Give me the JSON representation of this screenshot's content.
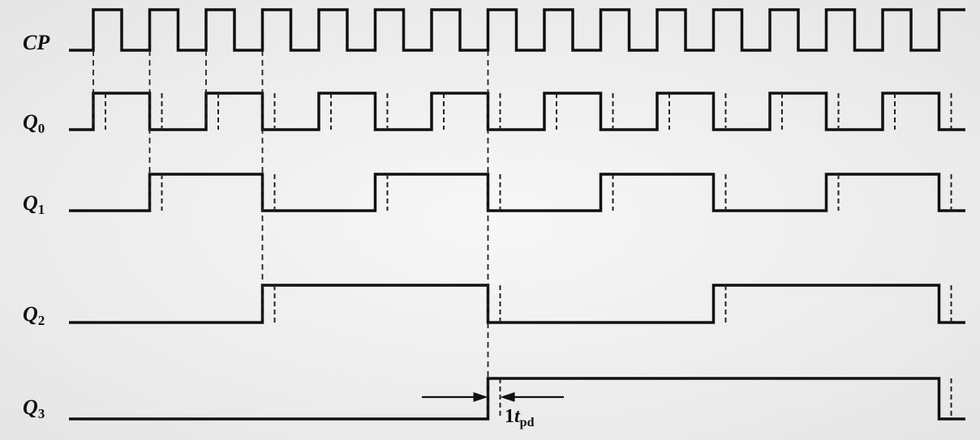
{
  "signals": [
    {
      "id": "CP",
      "name": "CP",
      "sub": ""
    },
    {
      "id": "Q0",
      "name": "Q",
      "sub": "0"
    },
    {
      "id": "Q1",
      "name": "Q",
      "sub": "1"
    },
    {
      "id": "Q2",
      "name": "Q",
      "sub": "2"
    },
    {
      "id": "Q3",
      "name": "Q",
      "sub": "3"
    }
  ],
  "annotation": {
    "num": "1",
    "t": "t",
    "sub": "pd"
  },
  "colors": {
    "line": "#111111",
    "dash": "#222222",
    "background": "#f3f3f3"
  }
}
